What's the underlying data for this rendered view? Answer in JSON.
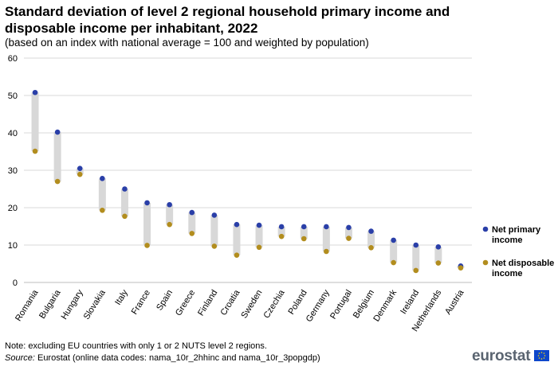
{
  "title": "Standard deviation of level 2 regional household primary income and disposable income per inhabitant, 2022",
  "subtitle": "(based on an index with national average = 100 and weighted by population)",
  "note": "Note: excluding EU countries with only 1 or 2 NUTS level 2 regions.",
  "source_label": "Source:",
  "source_text": " Eurostat (online data codes: nama_10r_2hhinc and nama_10r_3popgdp)",
  "logo_text": "eurostat",
  "colors": {
    "primary": "#2a3fa8",
    "disposable": "#b28d1e",
    "range": "#d8d8d8",
    "grid": "#d9d9d9"
  },
  "chart_data": {
    "type": "dumbbell",
    "title": "Standard deviation of level 2 regional household primary income and disposable income per inhabitant, 2022",
    "categories": [
      "Romania",
      "Bulgaria",
      "Hungary",
      "Slovakia",
      "Italy",
      "France",
      "Spain",
      "Greece",
      "Finland",
      "Croatia",
      "Sweden",
      "Czechia",
      "Poland",
      "Germany",
      "Portugal",
      "Belgium",
      "Denmark",
      "Ireland",
      "Netherlands",
      "Austria"
    ],
    "series": [
      {
        "name": "Net primary income",
        "values": [
          50.8,
          40.2,
          30.5,
          27.8,
          25.0,
          21.3,
          20.8,
          18.7,
          18.0,
          15.5,
          15.3,
          14.9,
          14.9,
          14.9,
          14.7,
          13.7,
          11.3,
          10.0,
          9.5,
          4.4
        ]
      },
      {
        "name": "Net disposable income",
        "values": [
          35.1,
          27.0,
          28.9,
          19.3,
          17.7,
          9.9,
          15.5,
          13.1,
          9.7,
          7.3,
          9.4,
          12.3,
          11.7,
          8.3,
          11.8,
          9.3,
          5.3,
          3.2,
          5.2,
          3.9
        ]
      }
    ],
    "ylim": [
      0,
      60
    ],
    "yticks": [
      0,
      10,
      20,
      30,
      40,
      50,
      60
    ],
    "ytick_labels": [
      "0",
      "10",
      "20",
      "30",
      "40",
      "50",
      "60"
    ],
    "xlabel": "",
    "ylabel": "",
    "grid": true,
    "legend": [
      {
        "line1": "Net primary",
        "line2": "income"
      },
      {
        "line1": "Net disposable",
        "line2": "income"
      }
    ],
    "legend_position": "right"
  }
}
